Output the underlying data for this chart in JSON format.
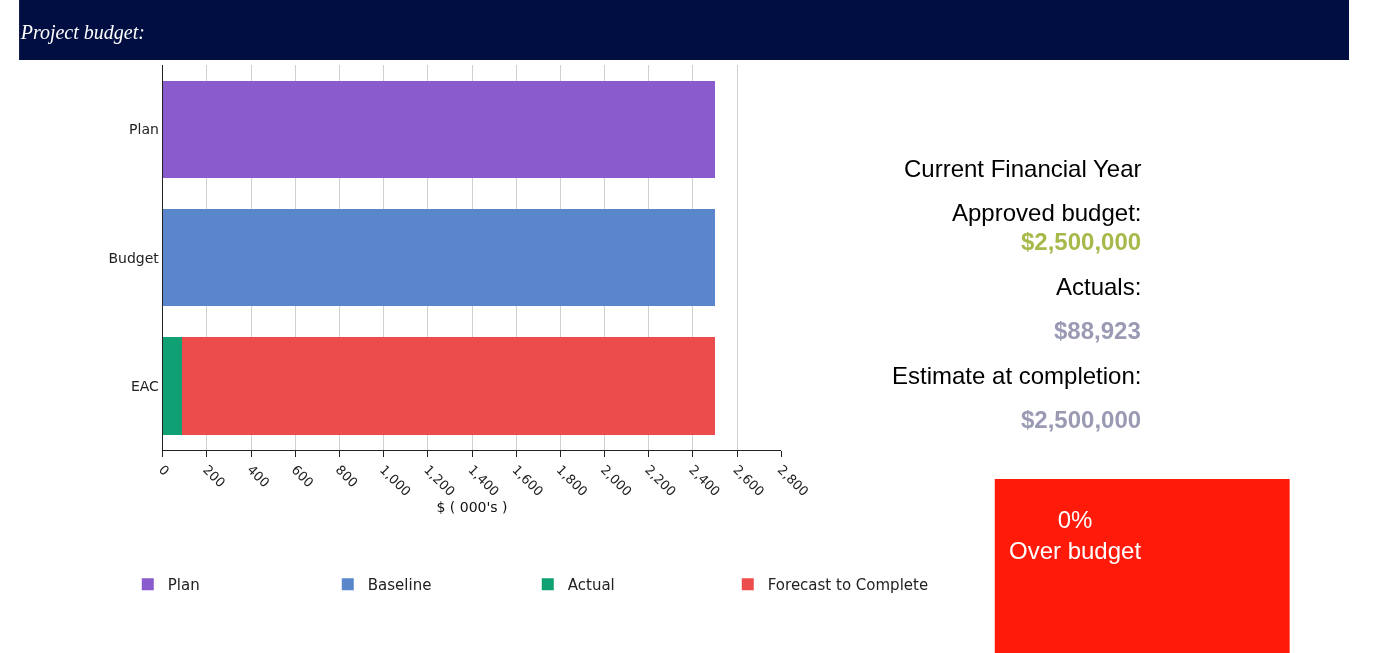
{
  "chart_data": {
    "type": "bar",
    "orientation": "horizontal",
    "stacked": true,
    "title": "Project budget:",
    "xlabel": "$ ( 000's )",
    "categories": [
      "Plan",
      "Budget",
      "EAC"
    ],
    "series": [
      {
        "name": "Plan",
        "color": "#8a5bcd",
        "values": [
          2500,
          null,
          null
        ]
      },
      {
        "name": "Baseline",
        "color": "#5a87cc",
        "values": [
          null,
          2500,
          null
        ]
      },
      {
        "name": "Actual",
        "color": "#0fa074",
        "values": [
          null,
          null,
          89
        ]
      },
      {
        "name": "Forecast to Complete",
        "color": "#ec4c4c",
        "values": [
          null,
          null,
          2411
        ]
      }
    ],
    "xlim": [
      0,
      2800
    ],
    "xticks": [
      0,
      200,
      400,
      600,
      800,
      {
        "value": 1000,
        "label": "1,000"
      },
      {
        "value": 1200,
        "label": "1,200"
      },
      {
        "value": 1400,
        "label": "1,400"
      },
      {
        "value": 1600,
        "label": "1,600"
      },
      {
        "value": 1800,
        "label": "1,800"
      },
      {
        "value": 2000,
        "label": "2,000"
      },
      {
        "value": 2200,
        "label": "2,200"
      },
      {
        "value": 2400,
        "label": "2,400"
      },
      {
        "value": 2600,
        "label": "2,600"
      },
      {
        "value": 2800,
        "label": "2,800"
      }
    ],
    "grid": "x",
    "legend": "bottom",
    "annotations": [
      "Current Financial Year",
      "Approved budget:",
      "$2,500,000",
      "Actuals:",
      "$88,923",
      "Estimate at completion:",
      "$2,500,000",
      "0%\nOver budget"
    ]
  }
}
